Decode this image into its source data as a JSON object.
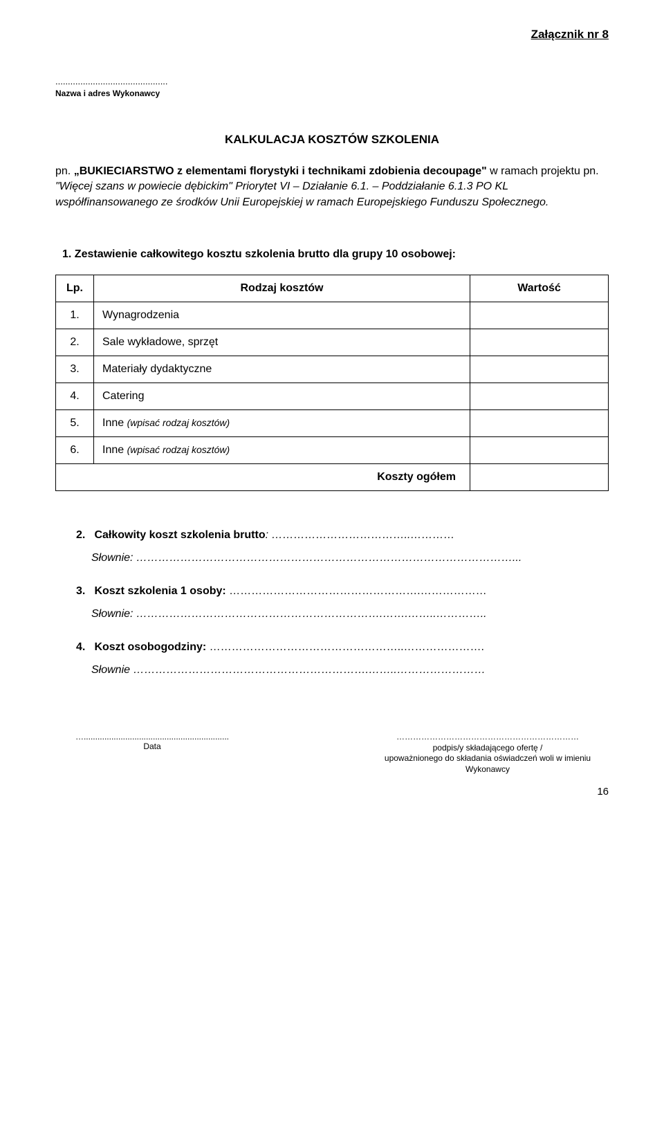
{
  "header": {
    "attachment": "Załącznik nr 8",
    "dots": ".............................................",
    "sublabel": "Nazwa i adres Wykonawcy"
  },
  "title": "KALKULACJA KOSZTÓW SZKOLENIA",
  "intro": {
    "pn": "pn. ",
    "quoted": "„BUKIECIARSTWO z elementami florystyki i technikami zdobienia decoupage\"",
    "line1_rest": " w ramach projektu pn. ",
    "italic_part": "\"Więcej szans w powiecie dębickim\" Priorytet VI – Działanie 6.1. – Poddziałanie 6.1.3 PO KL współfinansowanego ze środków Unii Europejskiej w ramach Europejskiego Funduszu Społecznego."
  },
  "section1": {
    "heading": "1.    Zestawienie całkowitego kosztu szkolenia brutto dla grupy 10 osobowej:"
  },
  "table": {
    "columns": {
      "lp": "Lp.",
      "rodzaj": "Rodzaj kosztów",
      "wartosc": "Wartość"
    },
    "rows": [
      {
        "lp": "1.",
        "label": "Wynagrodzenia",
        "italic": ""
      },
      {
        "lp": "2.",
        "label": "Sale wykładowe, sprzęt",
        "italic": ""
      },
      {
        "lp": "3.",
        "label": "Materiały dydaktyczne",
        "italic": ""
      },
      {
        "lp": "4.",
        "label": "Catering",
        "italic": ""
      },
      {
        "lp": "5.",
        "label": "Inne ",
        "italic": "(wpisać rodzaj kosztów)"
      },
      {
        "lp": "6.",
        "label": "Inne ",
        "italic": "(wpisać rodzaj kosztów)"
      }
    ],
    "total_label": "Koszty  ogółem"
  },
  "questions": [
    {
      "num": "2.",
      "bold_text": "Całkowity koszt szkolenia brutto",
      "italic_tail": ": ………………………………..…………",
      "slownie": "Słownie: …………………………………………………………………………………………..."
    },
    {
      "num": "3.",
      "bold_text": "Koszt szkolenia 1 osoby:",
      "italic_tail": " …………………………………………….………………",
      "slownie": "Słownie: ………………………………………………………….…….……..………….."
    },
    {
      "num": "4.",
      "bold_text": "Koszt osobogodziny:",
      "italic_tail": " ……………………………………………..………………….",
      "slownie": "Słownie ……………………………………………………….……..……………………"
    }
  ],
  "footer": {
    "left_dots": "…...............................................................",
    "left_label": "Data",
    "right_dots": "…………………………………………………………",
    "right_label1": "podpis/y składającego ofertę /",
    "right_label2": "upoważnionego do składania oświadczeń woli w imieniu Wykonawcy"
  },
  "page_number": "16"
}
